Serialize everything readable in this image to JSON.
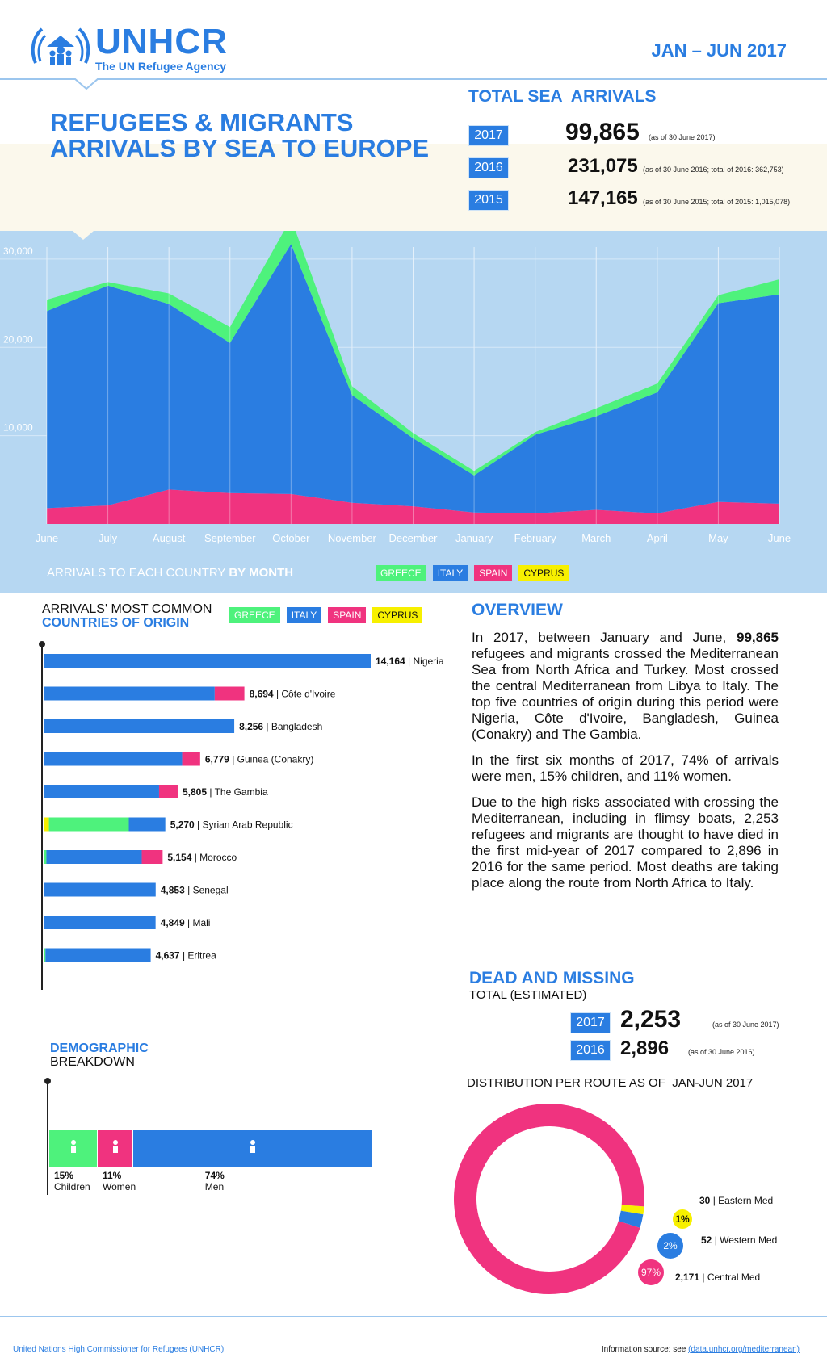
{
  "header": {
    "logo_name": "UNHCR",
    "logo_sub": "The UN Refugee Agency",
    "period": "JAN – JUN 2017",
    "title_line1": "REFUGEES & MIGRANTS",
    "title_line2": "ARRIVALS BY SEA TO EUROPE"
  },
  "totals": {
    "title": "TOTAL SEA  ARRIVALS",
    "rows": [
      {
        "year": "2017",
        "value": "99,865",
        "note": "(as of 30 June 2017)"
      },
      {
        "year": "2016",
        "value": "231,075",
        "note": "(as of 30 June 2016; total of 2016: 362,753)"
      },
      {
        "year": "2015",
        "value": "147,165",
        "note": "(as of 30 June 2015; total of 2015: 1,015,078)"
      }
    ]
  },
  "colors": {
    "greece": "#4ef27c",
    "italy": "#2a7de1",
    "spain": "#f0337f",
    "cyprus": "#f7f000",
    "bg_chart": "#b6d7f2"
  },
  "monthly": {
    "caption_a": "ARRIVALS TO EACH COUNTRY ",
    "caption_b": "BY MONTH",
    "legend": [
      "GREECE",
      "ITALY",
      "SPAIN",
      "CYPRUS"
    ]
  },
  "chart_data": [
    {
      "type": "area",
      "categories": [
        "June",
        "July",
        "August",
        "September",
        "October",
        "November",
        "December",
        "January",
        "February",
        "March",
        "April",
        "May",
        "June"
      ],
      "y_ticks": [
        "10,000",
        "20,000",
        "30,000"
      ],
      "stacked": true,
      "grid": true,
      "legend": "bottom",
      "series": [
        {
          "name": "SPAIN",
          "values": [
            1800,
            2100,
            3900,
            3500,
            3400,
            2400,
            2000,
            1300,
            1200,
            1600,
            1200,
            2500,
            2300
          ]
        },
        {
          "name": "ITALY",
          "values": [
            22300,
            24900,
            21000,
            17000,
            28300,
            12200,
            7700,
            4200,
            8900,
            10600,
            13700,
            22500,
            23700
          ]
        },
        {
          "name": "GREECE",
          "values": [
            1300,
            400,
            1200,
            1800,
            2900,
            1000,
            600,
            500,
            300,
            900,
            1000,
            900,
            1700
          ]
        }
      ]
    },
    {
      "type": "bar",
      "orientation": "horizontal",
      "stacked": true,
      "title_line1": "ARRIVALS' MOST COMMON",
      "title_line2": "COUNTRIES OF ORIGIN",
      "legend": [
        "GREECE",
        "ITALY",
        "SPAIN",
        "CYPRUS"
      ],
      "categories": [
        "Nigeria",
        "Côte d'Ivoire",
        "Bangladesh",
        "Guinea (Conakry)",
        "The Gambia",
        "Syrian Arab Republic",
        "Morocco",
        "Senegal",
        "Mali",
        "Eritrea"
      ],
      "totals_label": [
        "14,164",
        "8,694",
        "8,256",
        "6,779",
        "5,805",
        "5,270",
        "5,154",
        "4,853",
        "4,849",
        "4,637"
      ],
      "series": [
        {
          "name": "CYPRUS",
          "values": [
            0,
            0,
            0,
            0,
            0,
            230,
            0,
            0,
            0,
            0
          ]
        },
        {
          "name": "GREECE",
          "values": [
            0,
            0,
            0,
            0,
            0,
            3460,
            120,
            0,
            0,
            80
          ]
        },
        {
          "name": "ITALY",
          "values": [
            14164,
            7410,
            8256,
            6000,
            5000,
            1580,
            4130,
            4853,
            4849,
            4557
          ]
        },
        {
          "name": "SPAIN",
          "values": [
            0,
            1284,
            0,
            779,
            805,
            0,
            904,
            0,
            0,
            0
          ]
        }
      ]
    },
    {
      "type": "bar",
      "orientation": "horizontal",
      "stacked": true,
      "title_line1": "DEMOGRAPHIC",
      "title_line2": "BREAKDOWN",
      "categories": [
        "Children",
        "Women",
        "Men"
      ],
      "values": [
        15,
        11,
        74
      ],
      "labels": [
        "15%",
        "11%",
        "74%"
      ]
    },
    {
      "type": "pie",
      "title": "DISTRIBUTION PER ROUTE AS OF  JAN-JUN 2017",
      "categories": [
        "Eastern Med",
        "Western Med",
        "Central Med"
      ],
      "values": [
        30,
        52,
        2171
      ],
      "value_labels": [
        "30",
        "52",
        "2,171"
      ],
      "percent_labels": [
        "1%",
        "2%",
        "97%"
      ]
    }
  ],
  "overview": {
    "title": "OVERVIEW",
    "p1_a": "In 2017, between January and June, ",
    "p1_b": "99,865",
    "p1_c": " refugees and migrants crossed the Mediterranean Sea from North Africa and Turkey. Most crossed the central Mediterranean from Libya to Italy. The top five countries of origin during this period were Nigeria, Côte d'Ivoire, Bangladesh, Guinea (Conakry) and The Gambia.",
    "p2": "In the first six months of 2017, 74% of arrivals were men, 15% children, and 11% women.",
    "p3": "Due to the high risks associated with crossing the Mediterranean, including in flimsy boats, 2,253 refugees and migrants are thought to have died in the first mid-year of 2017 compared to 2,896 in 2016 for the same period. Most deaths are taking place along the route from North Africa to Italy."
  },
  "dead": {
    "title": "DEAD AND MISSING",
    "subtitle": "TOTAL (ESTIMATED)",
    "rows": [
      {
        "year": "2017",
        "value": "2,253",
        "note": "(as of 30 June 2017)"
      },
      {
        "year": "2016",
        "value": "2,896",
        "note": "(as of 30 June 2016)"
      }
    ]
  },
  "footer": {
    "left": "United Nations High Commissioner for Refugees (UNHCR)",
    "right_a": "Information source: see ",
    "right_b": "(data.unhcr.org/mediterranean)"
  }
}
